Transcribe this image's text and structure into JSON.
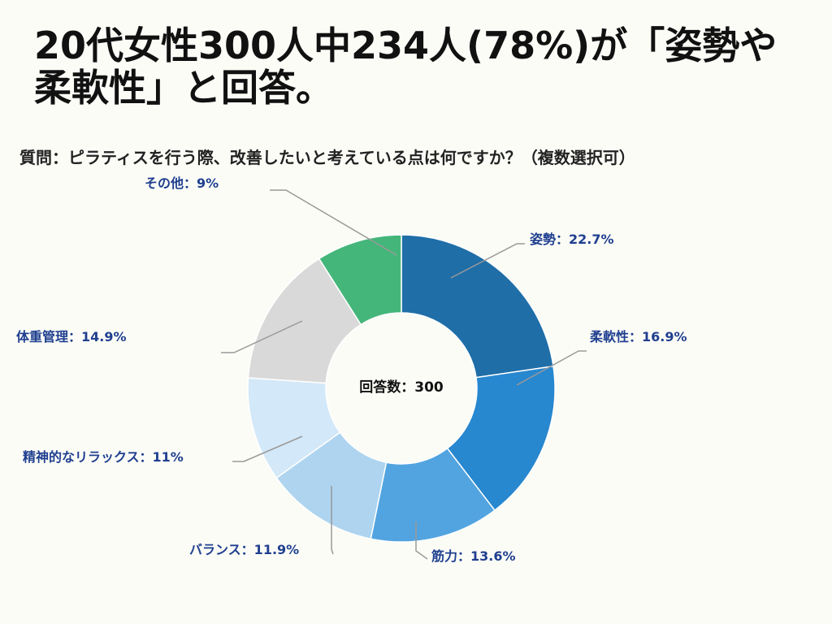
{
  "title": "20代女性300人中234人(78%)が「姿勢や柔軟性」と回答。",
  "question": "質問：ピラティスを行う際、改善したいと考えている点は何ですか？（複数選択可）",
  "chart_data": {
    "type": "pie",
    "center_label": "回答数：300",
    "categories": [
      "姿勢",
      "柔軟性",
      "筋力",
      "バランス",
      "精神的なリラックス",
      "体重管理",
      "その他"
    ],
    "values": [
      22.7,
      16.9,
      13.6,
      11.9,
      11,
      14.9,
      9
    ],
    "labels": [
      "姿勢：22.7%",
      "柔軟性：16.9%",
      "筋力：13.6%",
      "バランス：11.9%",
      "精神的なリラックス：11%",
      "体重管理：14.9%",
      "その他：9%"
    ],
    "colors": [
      "#1f6ea8",
      "#2787cf",
      "#52a4e0",
      "#aed4ef",
      "#d3e8f8",
      "#d9d9d9",
      "#45b67a"
    ]
  }
}
